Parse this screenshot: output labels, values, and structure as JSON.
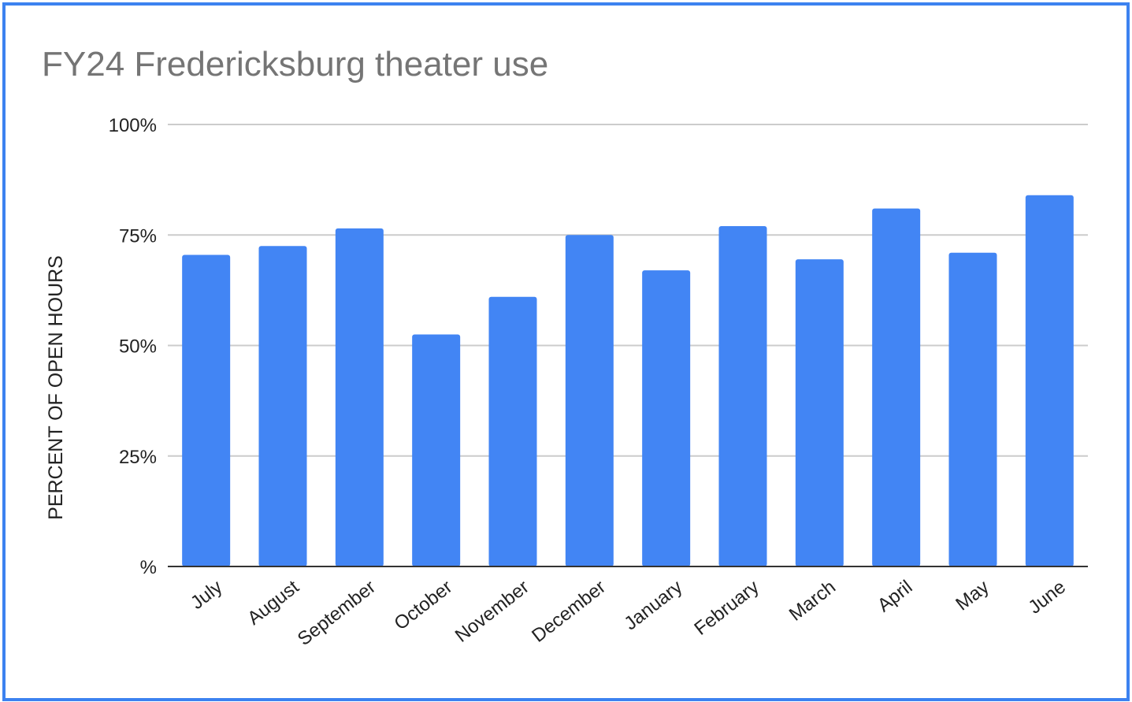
{
  "colors": {
    "border": "#3c82f0",
    "bar": "#4285f4",
    "grid": "#cccccc",
    "baseline": "#333333",
    "title": "#757575"
  },
  "chart_data": {
    "type": "bar",
    "title": "FY24 Fredericksburg theater use",
    "xlabel": "",
    "ylabel": "PERCENT OF OPEN HOURS",
    "categories": [
      "July",
      "August",
      "September",
      "October",
      "November",
      "December",
      "January",
      "February",
      "March",
      "April",
      "May",
      "June"
    ],
    "values": [
      70.5,
      72.5,
      76.5,
      52.5,
      61.0,
      75.0,
      67.0,
      77.0,
      69.5,
      81.0,
      71.0,
      84.0
    ],
    "ylim": [
      0,
      100
    ],
    "yticks": [
      0,
      25,
      50,
      75,
      100
    ],
    "ytick_labels": [
      "%",
      "25%",
      "50%",
      "75%",
      "100%"
    ],
    "grid": true,
    "legend": "none"
  }
}
